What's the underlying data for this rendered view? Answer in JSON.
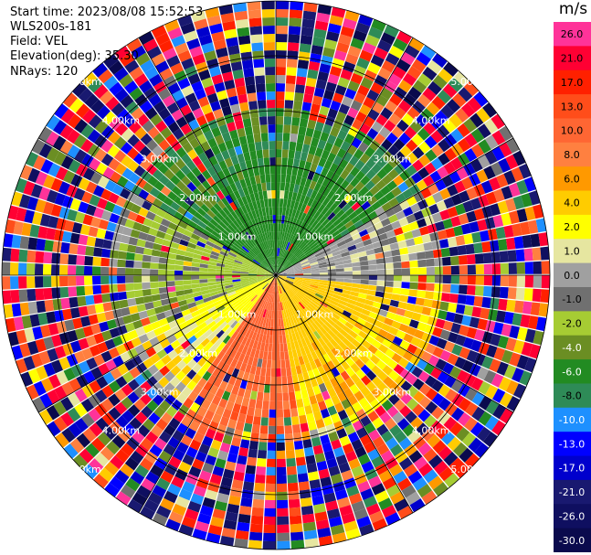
{
  "info": {
    "start_time": "Start time: 2023/08/08 15:52:53",
    "instrument": "WLS200s-181",
    "field": "Field: VEL",
    "elevation": "Elevation(deg): 35.30",
    "nrays": "NRays: 120"
  },
  "colorbar": {
    "unit": "m/s",
    "labels": [
      "26.0",
      "21.0",
      "17.0",
      "13.0",
      "10.0",
      "8.0",
      "6.0",
      "4.0",
      "2.0",
      "1.0",
      "0.0",
      "-1.0",
      "-2.0",
      "-4.0",
      "-6.0",
      "-8.0",
      "-10.0",
      "-13.0",
      "-17.0",
      "-21.0",
      "-26.0",
      "-30.0"
    ],
    "colors": [
      "#ff3399",
      "#ff0033",
      "#ff2000",
      "#ff4d1a",
      "#ff6633",
      "#ff8040",
      "#ff9900",
      "#ffcc00",
      "#ffff00",
      "#e6e6a0",
      "#a0a0a0",
      "#707070",
      "#a6cc33",
      "#6b8e23",
      "#228b22",
      "#2e8b57",
      "#1e90ff",
      "#0000ff",
      "#0000cd",
      "#191970",
      "#0f0f60",
      "#0a0a4d"
    ]
  },
  "chart_data": {
    "type": "heatmap",
    "projection": "polar-ppi",
    "nrays": 120,
    "range_rings": [
      "1.00km",
      "2.00km",
      "3.00km",
      "4.00km",
      "5.00km"
    ],
    "max_range_km": 5.0,
    "near_field_max_km": 3.0,
    "regions": [
      {
        "azimuth_deg": [
          300,
          60
        ],
        "value_mps": -6.0
      },
      {
        "azimuth_deg": [
          60,
          95
        ],
        "value_mps": 0.0
      },
      {
        "azimuth_deg": [
          95,
          170
        ],
        "value_mps": 4.0
      },
      {
        "azimuth_deg": [
          170,
          215
        ],
        "value_mps": 10.0
      },
      {
        "azimuth_deg": [
          215,
          250
        ],
        "value_mps": 2.0
      },
      {
        "azimuth_deg": [
          250,
          300
        ],
        "value_mps": -2.0
      }
    ],
    "far_field": "noisy"
  }
}
